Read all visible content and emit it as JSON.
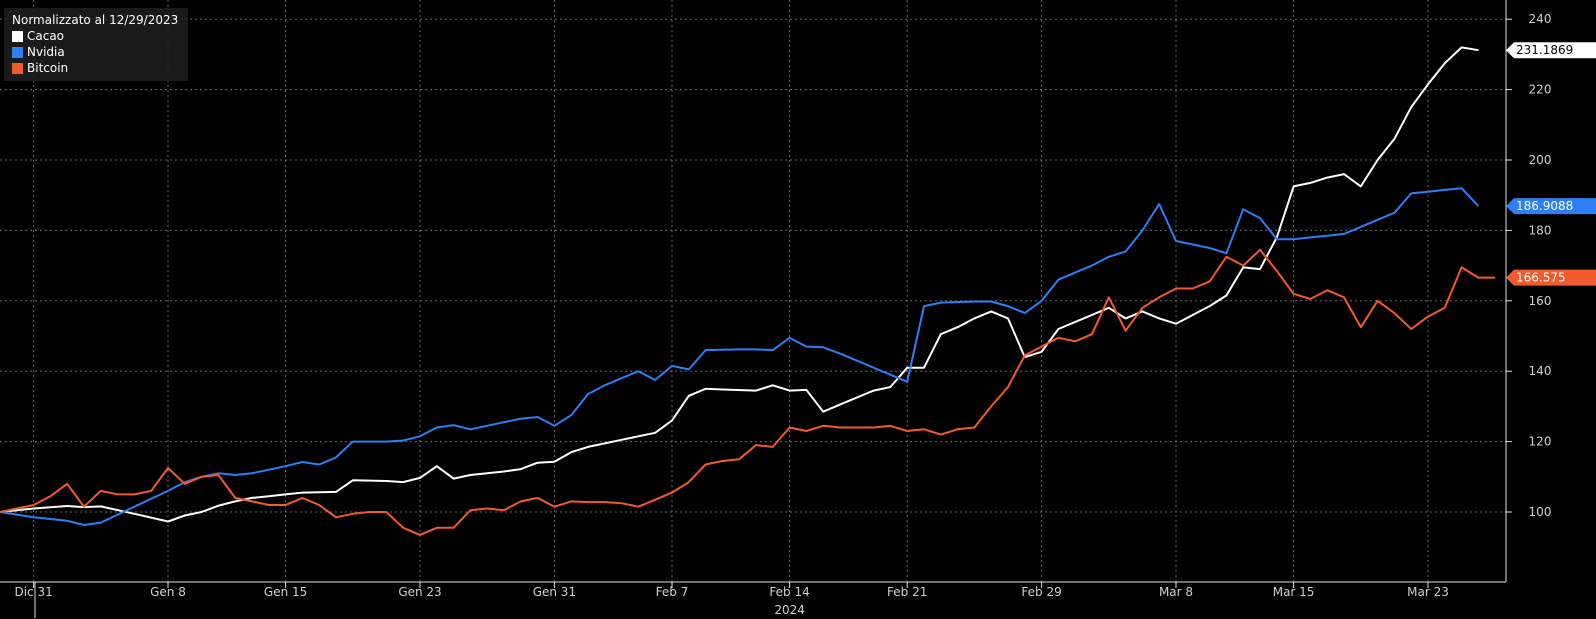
{
  "chart_data": {
    "type": "line",
    "title": "",
    "legend_title": "Normalizzato al 12/29/2023",
    "legend_position": "top-left",
    "grid": true,
    "ylim": [
      80,
      240
    ],
    "y_ticks": [
      100,
      120,
      140,
      160,
      180,
      200,
      220,
      240
    ],
    "x_range": [
      0,
      90
    ],
    "x_ticks": [
      {
        "label": "Dic 31",
        "t": 2
      },
      {
        "label": "Gen 8",
        "t": 10
      },
      {
        "label": "Gen 15",
        "t": 17
      },
      {
        "label": "Gen 23",
        "t": 25
      },
      {
        "label": "Gen 31",
        "t": 33
      },
      {
        "label": "Feb 7",
        "t": 40
      },
      {
        "label": "Feb 14",
        "t": 47
      },
      {
        "label": "Feb 21",
        "t": 54
      },
      {
        "label": "Feb 29",
        "t": 62
      },
      {
        "label": "Mar 8",
        "t": 70
      },
      {
        "label": "Mar 15",
        "t": 77
      },
      {
        "label": "Mar 23",
        "t": 85
      }
    ],
    "year_label": "2024",
    "year_label_t": 47,
    "series": [
      {
        "name": "Cacao",
        "color": "#ffffff",
        "last_label": "231.1869",
        "last_value": 231.1869,
        "points": [
          [
            0,
            100
          ],
          [
            2,
            101
          ],
          [
            4,
            101.7
          ],
          [
            5,
            101.4
          ],
          [
            6,
            101.6
          ],
          [
            8,
            99.5
          ],
          [
            10,
            97.3
          ],
          [
            11,
            99
          ],
          [
            12,
            100
          ],
          [
            13,
            101.8
          ],
          [
            14,
            103
          ],
          [
            15,
            104
          ],
          [
            16,
            104.5
          ],
          [
            17,
            105
          ],
          [
            18,
            105.5
          ],
          [
            20,
            105.7
          ],
          [
            21,
            109
          ],
          [
            23,
            108.8
          ],
          [
            24,
            108.5
          ],
          [
            25,
            109.7
          ],
          [
            26,
            113
          ],
          [
            27,
            109.5
          ],
          [
            28,
            110.5
          ],
          [
            29,
            111
          ],
          [
            30,
            111.5
          ],
          [
            31,
            112.2
          ],
          [
            32,
            114
          ],
          [
            33,
            114.3
          ],
          [
            34,
            117
          ],
          [
            35,
            118.5
          ],
          [
            36,
            119.5
          ],
          [
            37,
            120.5
          ],
          [
            38,
            121.5
          ],
          [
            39,
            122.5
          ],
          [
            40,
            126
          ],
          [
            41,
            133
          ],
          [
            42,
            135
          ],
          [
            43,
            134.8
          ],
          [
            45,
            134.5
          ],
          [
            46,
            136
          ],
          [
            47,
            134.5
          ],
          [
            48,
            134.7
          ],
          [
            49,
            128.5
          ],
          [
            50,
            130.5
          ],
          [
            51,
            132.5
          ],
          [
            52,
            134.5
          ],
          [
            53,
            135.5
          ],
          [
            54,
            141
          ],
          [
            55,
            141
          ],
          [
            56,
            150.5
          ],
          [
            57,
            152.5
          ],
          [
            58,
            155
          ],
          [
            59,
            157
          ],
          [
            60,
            155
          ],
          [
            61,
            144
          ],
          [
            62,
            145.5
          ],
          [
            63,
            152
          ],
          [
            64,
            154
          ],
          [
            65,
            156
          ],
          [
            66,
            158
          ],
          [
            67,
            155
          ],
          [
            68,
            157
          ],
          [
            69,
            155
          ],
          [
            70,
            153.5
          ],
          [
            72,
            158.5
          ],
          [
            73,
            161.5
          ],
          [
            74,
            169.5
          ],
          [
            75,
            169
          ],
          [
            76,
            178
          ],
          [
            77,
            192.5
          ],
          [
            78,
            193.5
          ],
          [
            79,
            195
          ],
          [
            80,
            196
          ],
          [
            81,
            192.5
          ],
          [
            82,
            200
          ],
          [
            83,
            206
          ],
          [
            84,
            215
          ],
          [
            85,
            221.5
          ],
          [
            86,
            227.5
          ],
          [
            87,
            232
          ],
          [
            88,
            231.19
          ]
        ]
      },
      {
        "name": "Nvidia",
        "color": "#2f7ef5",
        "last_label": "186.9088",
        "last_value": 186.9088,
        "points": [
          [
            0,
            100
          ],
          [
            2,
            98.5
          ],
          [
            4,
            97.5
          ],
          [
            5,
            96.3
          ],
          [
            6,
            97
          ],
          [
            8,
            101.5
          ],
          [
            10,
            106
          ],
          [
            11,
            108.5
          ],
          [
            12,
            110
          ],
          [
            13,
            111
          ],
          [
            14,
            110.5
          ],
          [
            15,
            111
          ],
          [
            17,
            113
          ],
          [
            18,
            114.2
          ],
          [
            19,
            113.5
          ],
          [
            20,
            115.5
          ],
          [
            21,
            120
          ],
          [
            23,
            120
          ],
          [
            24,
            120.3
          ],
          [
            25,
            121.5
          ],
          [
            26,
            124
          ],
          [
            27,
            124.7
          ],
          [
            28,
            123.5
          ],
          [
            29,
            124.5
          ],
          [
            30,
            125.5
          ],
          [
            31,
            126.5
          ],
          [
            32,
            127
          ],
          [
            33,
            124.5
          ],
          [
            34,
            127.5
          ],
          [
            35,
            133.5
          ],
          [
            36,
            136
          ],
          [
            37,
            138
          ],
          [
            38,
            140
          ],
          [
            39,
            137.5
          ],
          [
            40,
            141.5
          ],
          [
            41,
            140.5
          ],
          [
            42,
            146
          ],
          [
            44,
            146.2
          ],
          [
            45,
            146.2
          ],
          [
            46,
            146
          ],
          [
            47,
            149.5
          ],
          [
            48,
            147
          ],
          [
            49,
            146.8
          ],
          [
            50,
            145
          ],
          [
            51,
            143
          ],
          [
            52,
            141
          ],
          [
            53,
            139
          ],
          [
            54,
            137
          ],
          [
            55,
            158.5
          ],
          [
            56,
            159.5
          ],
          [
            58,
            159.8
          ],
          [
            59,
            159.8
          ],
          [
            60,
            158.5
          ],
          [
            61,
            156.5
          ],
          [
            62,
            160
          ],
          [
            63,
            166
          ],
          [
            64,
            168
          ],
          [
            65,
            170
          ],
          [
            66,
            172.5
          ],
          [
            67,
            174
          ],
          [
            68,
            180
          ],
          [
            69,
            187.5
          ],
          [
            70,
            177
          ],
          [
            71,
            176
          ],
          [
            72,
            175
          ],
          [
            73,
            173.5
          ],
          [
            74,
            186
          ],
          [
            75,
            183.5
          ],
          [
            76,
            177.5
          ],
          [
            77,
            177.5
          ],
          [
            78,
            178
          ],
          [
            79,
            178.5
          ],
          [
            80,
            179
          ],
          [
            81,
            181
          ],
          [
            82,
            183
          ],
          [
            83,
            185
          ],
          [
            84,
            190.5
          ],
          [
            85,
            191
          ],
          [
            86,
            191.5
          ],
          [
            87,
            192
          ],
          [
            88,
            186.91
          ]
        ]
      },
      {
        "name": "Bitcoin",
        "color": "#f25a2f",
        "last_label": "166.575",
        "last_value": 166.575,
        "points": [
          [
            0,
            100
          ],
          [
            1,
            101
          ],
          [
            2,
            102
          ],
          [
            3,
            104.5
          ],
          [
            4,
            108
          ],
          [
            5,
            101.5
          ],
          [
            6,
            106
          ],
          [
            7,
            105
          ],
          [
            8,
            105
          ],
          [
            9,
            106
          ],
          [
            10,
            112.5
          ],
          [
            11,
            108
          ],
          [
            12,
            110
          ],
          [
            13,
            110.5
          ],
          [
            14,
            104
          ],
          [
            15,
            103
          ],
          [
            16,
            102
          ],
          [
            17,
            102
          ],
          [
            18,
            104
          ],
          [
            19,
            102
          ],
          [
            20,
            98.5
          ],
          [
            21,
            99.5
          ],
          [
            22,
            100
          ],
          [
            23,
            100
          ],
          [
            24,
            95.5
          ],
          [
            25,
            93.5
          ],
          [
            26,
            95.5
          ],
          [
            27,
            95.5
          ],
          [
            28,
            100.5
          ],
          [
            29,
            101
          ],
          [
            30,
            100.5
          ],
          [
            31,
            103
          ],
          [
            32,
            104
          ],
          [
            33,
            101.5
          ],
          [
            34,
            103
          ],
          [
            35,
            102.8
          ],
          [
            36,
            102.8
          ],
          [
            37,
            102.5
          ],
          [
            38,
            101.5
          ],
          [
            39,
            103.5
          ],
          [
            40,
            105.5
          ],
          [
            41,
            108.5
          ],
          [
            42,
            113.5
          ],
          [
            43,
            114.5
          ],
          [
            44,
            115
          ],
          [
            45,
            119
          ],
          [
            46,
            118.5
          ],
          [
            47,
            124
          ],
          [
            48,
            123
          ],
          [
            49,
            124.5
          ],
          [
            50,
            124
          ],
          [
            51,
            124
          ],
          [
            52,
            124
          ],
          [
            53,
            124.5
          ],
          [
            54,
            123
          ],
          [
            55,
            123.5
          ],
          [
            56,
            122
          ],
          [
            57,
            123.5
          ],
          [
            58,
            124
          ],
          [
            59,
            130
          ],
          [
            60,
            135.5
          ],
          [
            61,
            144.5
          ],
          [
            62,
            147
          ],
          [
            63,
            149.5
          ],
          [
            64,
            148.5
          ],
          [
            65,
            150.5
          ],
          [
            66,
            161
          ],
          [
            67,
            151.5
          ],
          [
            68,
            158
          ],
          [
            69,
            161
          ],
          [
            70,
            163.5
          ],
          [
            71,
            163.5
          ],
          [
            72,
            165.5
          ],
          [
            73,
            172.5
          ],
          [
            74,
            170
          ],
          [
            75,
            174.5
          ],
          [
            76,
            168.5
          ],
          [
            77,
            162
          ],
          [
            78,
            160.5
          ],
          [
            79,
            163
          ],
          [
            80,
            161
          ],
          [
            81,
            152.5
          ],
          [
            82,
            160
          ],
          [
            83,
            156.5
          ],
          [
            84,
            152
          ],
          [
            85,
            155.5
          ],
          [
            86,
            158
          ],
          [
            87,
            169.5
          ],
          [
            88,
            166.6
          ],
          [
            89,
            166.6
          ]
        ]
      }
    ]
  }
}
